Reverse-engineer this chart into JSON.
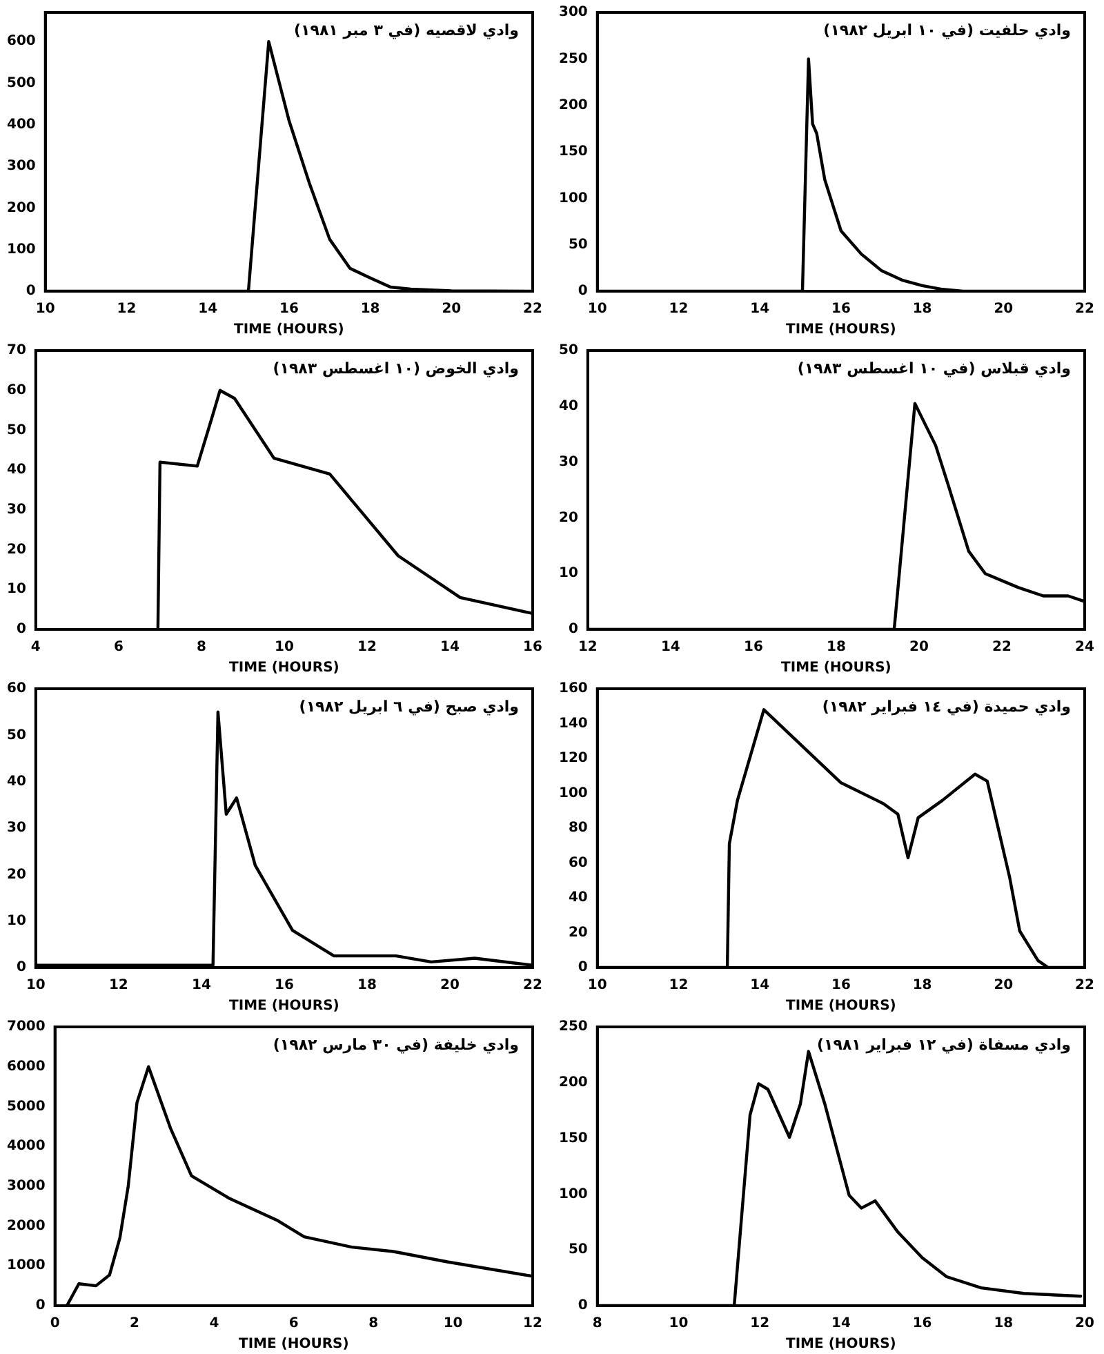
{
  "chart_data": [
    {
      "type": "line",
      "title": "وادي لاقصيه (في ٣ مبر ١٩٨١)",
      "xlabel": "TIME (HOURS)",
      "xlim": [
        10,
        22
      ],
      "xticks": [
        10,
        12,
        14,
        16,
        18,
        20,
        22
      ],
      "ylim": [
        0,
        670
      ],
      "yticks": [
        0,
        100,
        200,
        300,
        400,
        500,
        600
      ],
      "grid": false,
      "legend": false,
      "marker": "none",
      "line_style": "solid",
      "series": [
        {
          "color": "#000000",
          "x": [
            10,
            15,
            15.5,
            16,
            16.5,
            17,
            17.5,
            18,
            18.5,
            19,
            20,
            22
          ],
          "values": [
            0,
            0,
            600,
            410,
            260,
            125,
            55,
            32,
            10,
            5,
            1,
            0
          ]
        }
      ]
    },
    {
      "type": "line",
      "title": "وادي حلفيت (في ١٠ ابريل ١٩٨٢)",
      "xlabel": "TIME (HOURS)",
      "xlim": [
        10,
        22
      ],
      "xticks": [
        10,
        12,
        14,
        16,
        18,
        20,
        22
      ],
      "ylim": [
        0,
        300
      ],
      "yticks": [
        0,
        50,
        100,
        150,
        200,
        250,
        300
      ],
      "grid": false,
      "legend": false,
      "marker": "none",
      "line_style": "solid",
      "series": [
        {
          "color": "#000000",
          "x": [
            10,
            15.05,
            15.2,
            15.3,
            15.4,
            15.6,
            16,
            16.5,
            17,
            17.5,
            18,
            18.5,
            19,
            22
          ],
          "values": [
            0,
            0,
            250,
            180,
            170,
            120,
            65,
            40,
            22,
            12,
            6,
            2,
            0,
            0
          ]
        }
      ]
    },
    {
      "type": "line",
      "title": "وادي الخوض (١٠ اغسطس ١٩٨٣)",
      "xlabel": "TIME (HOURS)",
      "xlim": [
        4,
        16
      ],
      "xticks": [
        4,
        6,
        8,
        10,
        12,
        14,
        16
      ],
      "ylim": [
        0,
        70
      ],
      "yticks": [
        0,
        10,
        20,
        30,
        40,
        50,
        60,
        70
      ],
      "grid": false,
      "legend": false,
      "marker": "none",
      "line_style": "solid",
      "series": [
        {
          "color": "#000000",
          "x": [
            6.95,
            7,
            7.9,
            8.25,
            8.45,
            8.8,
            9.75,
            11.1,
            12.75,
            14.25,
            16
          ],
          "values": [
            0,
            42,
            41,
            53,
            60,
            58,
            43,
            39,
            18.5,
            8,
            4
          ]
        }
      ]
    },
    {
      "type": "line",
      "title": "وادي قبلاس (في ١٠ اغسطس ١٩٨٣)",
      "xlabel": "TIME (HOURS)",
      "xlim": [
        12,
        24
      ],
      "xticks": [
        12,
        14,
        16,
        18,
        20,
        22,
        24
      ],
      "ylim": [
        0,
        50
      ],
      "yticks": [
        0,
        10,
        20,
        30,
        40,
        50
      ],
      "grid": false,
      "legend": false,
      "marker": "none",
      "line_style": "solid",
      "series": [
        {
          "color": "#000000",
          "x": [
            12,
            19.4,
            19.9,
            20.2,
            20.4,
            20.7,
            21.2,
            21.6,
            22.4,
            23,
            23.6,
            24
          ],
          "values": [
            0,
            0,
            40.5,
            36,
            33,
            26,
            14,
            10,
            7.5,
            6,
            6,
            5
          ]
        }
      ]
    },
    {
      "type": "line",
      "title": "وادي صبح (في ٦ ابريل ١٩٨٢)",
      "xlabel": "TIME (HOURS)",
      "xlim": [
        10,
        22
      ],
      "xticks": [
        10,
        12,
        14,
        16,
        18,
        20,
        22
      ],
      "ylim": [
        0,
        60
      ],
      "yticks": [
        0,
        10,
        20,
        30,
        40,
        50,
        60
      ],
      "grid": false,
      "legend": false,
      "marker": "none",
      "line_style": "solid",
      "series": [
        {
          "color": "#000000",
          "x": [
            10,
            14.28,
            14.4,
            14.6,
            14.85,
            15.3,
            16.2,
            17.2,
            18.7,
            19.55,
            20.6,
            22
          ],
          "values": [
            0.5,
            0.5,
            55,
            33,
            36.5,
            22,
            8,
            2.5,
            2.5,
            1.2,
            2,
            0.5
          ]
        }
      ]
    },
    {
      "type": "line",
      "title": "وادي حميدة (في ١٤ فبراير ١٩٨٢)",
      "xlabel": "TIME (HOURS)",
      "xlim": [
        10,
        22
      ],
      "xticks": [
        10,
        12,
        14,
        16,
        18,
        20,
        22
      ],
      "ylim": [
        0,
        160
      ],
      "yticks": [
        0,
        20,
        40,
        60,
        80,
        100,
        120,
        140,
        160
      ],
      "grid": false,
      "legend": false,
      "marker": "none",
      "line_style": "solid",
      "series": [
        {
          "color": "#000000",
          "x": [
            10,
            13.2,
            13.25,
            13.45,
            14.1,
            15.05,
            16,
            17.05,
            17.4,
            17.65,
            17.9,
            18.5,
            19.3,
            19.6,
            20.15,
            20.4,
            20.85,
            21.1,
            22
          ],
          "values": [
            0,
            0,
            71,
            96,
            148,
            127,
            106,
            94,
            88,
            63,
            86,
            96,
            111,
            107,
            52,
            21,
            4,
            0,
            0
          ]
        }
      ]
    },
    {
      "type": "line",
      "title": "وادي خليفة (في ٣٠ مارس ١٩٨٢)",
      "xlabel": "TIME (HOURS)",
      "xlim": [
        0,
        12
      ],
      "xticks": [
        0,
        2,
        4,
        6,
        8,
        10,
        12
      ],
      "ylim": [
        0,
        7000
      ],
      "yticks": [
        0,
        1000,
        2000,
        3000,
        4000,
        5000,
        6000,
        7000
      ],
      "grid": false,
      "legend": false,
      "marker": "none",
      "line_style": "solid",
      "series": [
        {
          "color": "#000000",
          "x": [
            0.3,
            0.6,
            1.03,
            1.37,
            1.63,
            1.84,
            2.06,
            2.35,
            2.9,
            3.43,
            4.37,
            5.57,
            6.26,
            7.46,
            8.5,
            9.86,
            12
          ],
          "values": [
            0,
            550,
            500,
            770,
            1700,
            3000,
            5100,
            6000,
            4460,
            3260,
            2700,
            2150,
            1730,
            1470,
            1360,
            1100,
            740
          ]
        }
      ]
    },
    {
      "type": "line",
      "title": "وادي مسفاة (في ١٢ فبراير ١٩٨١)",
      "xlabel": "TIME (HOURS)",
      "xlim": [
        8,
        20
      ],
      "xticks": [
        8,
        10,
        12,
        14,
        16,
        18,
        20
      ],
      "ylim": [
        0,
        250
      ],
      "yticks": [
        0,
        50,
        100,
        150,
        200,
        250
      ],
      "grid": false,
      "legend": false,
      "marker": "none",
      "line_style": "solid",
      "series": [
        {
          "color": "#000000",
          "x": [
            8,
            11.37,
            11.76,
            11.97,
            12.2,
            12.73,
            13,
            13.2,
            13.6,
            14.2,
            14.5,
            14.84,
            15.4,
            16,
            16.6,
            17.45,
            18.5,
            19.9
          ],
          "values": [
            0,
            0,
            171,
            199,
            194,
            151,
            181,
            228,
            181,
            99,
            87.5,
            94,
            66,
            43,
            26,
            16,
            11,
            8.5
          ]
        }
      ]
    }
  ]
}
